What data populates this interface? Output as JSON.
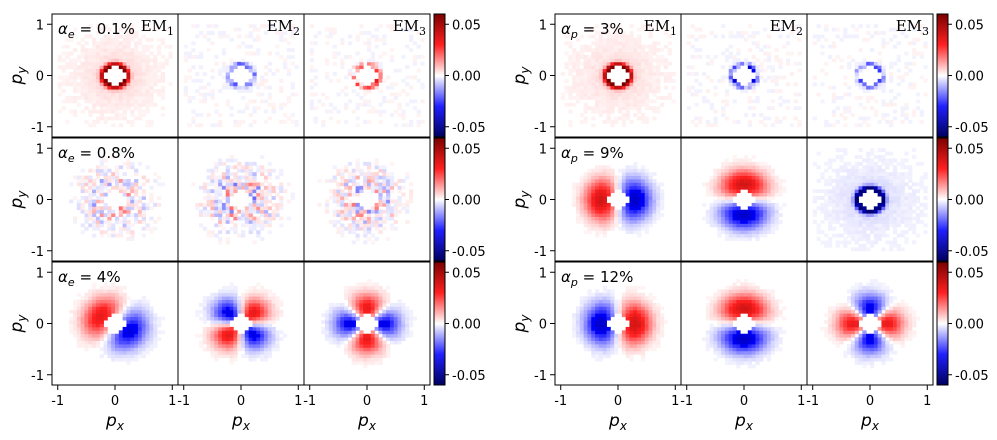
{
  "chart_data": {
    "type": "heatmap",
    "title": "",
    "xlabel": "p_x",
    "ylabel": "p_y",
    "xlim": [
      -1.1,
      1.1
    ],
    "ylim": [
      -1.2,
      1.2
    ],
    "x_ticks": [
      -1,
      0,
      1
    ],
    "y_ticks": [
      -1,
      0,
      1
    ],
    "colorbar": {
      "range": [
        -0.06,
        0.06
      ],
      "ticks": [
        0.05,
        0.0,
        -0.05
      ],
      "tick_labels": [
        "0.05",
        "0.00",
        "-0.05"
      ],
      "colormap": "seismic",
      "colors": {
        "negative": "#00008b",
        "zero": "#ffffff",
        "positive": "#b40000"
      }
    },
    "column_labels": [
      "EM",
      "EM",
      "EM"
    ],
    "column_subscripts": [
      "1",
      "2",
      "3"
    ],
    "groups": [
      {
        "name": "alpha_e",
        "symbol": "α",
        "subscript": "e",
        "rows": [
          {
            "label_value": "= 0.1%",
            "maps": [
              {
                "kind": "ring",
                "amplitude": 0.055,
                "radius": 0.2
              },
              {
                "kind": "noisy-ring",
                "amplitude": -0.03,
                "radius": 0.2
              },
              {
                "kind": "noisy-ring",
                "amplitude": 0.03,
                "radius": 0.2
              }
            ]
          },
          {
            "label_value": "= 0.8%",
            "maps": [
              {
                "kind": "noise",
                "amplitude": -0.04
              },
              {
                "kind": "noise",
                "amplitude": 0.045
              },
              {
                "kind": "noise",
                "amplitude": -0.04
              }
            ]
          },
          {
            "label_value": "= 4%",
            "maps": [
              {
                "kind": "dipole",
                "amplitude": 0.035,
                "angle_deg": 150
              },
              {
                "kind": "quadrupole",
                "amplitude": 0.035,
                "angle_deg": 225
              },
              {
                "kind": "quadrupole",
                "amplitude": 0.035,
                "angle_deg": 90
              }
            ]
          }
        ]
      },
      {
        "name": "alpha_p",
        "symbol": "α",
        "subscript": "p",
        "rows": [
          {
            "label_value": "= 3%",
            "maps": [
              {
                "kind": "ring",
                "amplitude": 0.055,
                "radius": 0.2
              },
              {
                "kind": "noisy-ring",
                "amplitude": -0.035,
                "radius": 0.2
              },
              {
                "kind": "noisy-ring",
                "amplitude": -0.03,
                "radius": 0.2
              }
            ]
          },
          {
            "label_value": "= 9%",
            "maps": [
              {
                "kind": "dipole",
                "amplitude": 0.04,
                "angle_deg": 180
              },
              {
                "kind": "dipole",
                "amplitude": 0.04,
                "angle_deg": 90
              },
              {
                "kind": "ring",
                "amplitude": -0.055,
                "radius": 0.22
              }
            ]
          },
          {
            "label_value": "= 12%",
            "maps": [
              {
                "kind": "dipole",
                "amplitude": 0.04,
                "angle_deg": 0
              },
              {
                "kind": "dipole",
                "amplitude": 0.04,
                "angle_deg": 90
              },
              {
                "kind": "quadrupole",
                "amplitude": 0.035,
                "angle_deg": 0
              }
            ]
          }
        ]
      }
    ]
  }
}
